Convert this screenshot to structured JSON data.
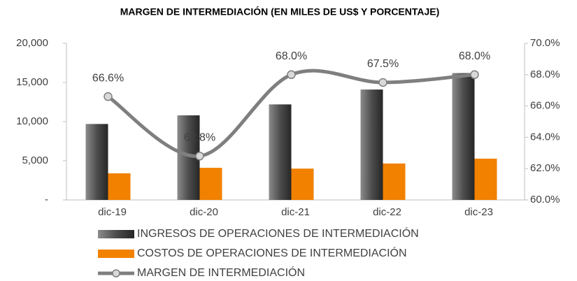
{
  "chart_data": {
    "type": "bar",
    "title": "MARGEN DE INTERMEDIACIÓN (EN MILES DE US$ Y PORCENTAJE)",
    "categories": [
      "dic-19",
      "dic-20",
      "dic-21",
      "dic-22",
      "dic-23"
    ],
    "series": [
      {
        "name": "INGRESOS DE OPERACIONES DE INTERMEDIACIÓN",
        "color": "#595959",
        "values": [
          9700,
          10800,
          12200,
          14100,
          16200
        ]
      },
      {
        "name": "COSTOS DE OPERACIONES DE INTERMEDIACIÓN",
        "color": "#f28100",
        "values": [
          3400,
          4100,
          4000,
          4650,
          5270
        ]
      },
      {
        "name": "MARGEN DE INTERMEDIACIÓN",
        "color": "#7f7f7f",
        "axis": "y2",
        "type": "line",
        "values": [
          66.6,
          62.8,
          68.0,
          67.5,
          68.0
        ],
        "value_labels": [
          "66.6%",
          "62.8%",
          "68.0%",
          "67.5%",
          "68.0%"
        ]
      }
    ],
    "ylim": [
      0,
      20000
    ],
    "yticks": [
      {
        "value": 0,
        "label": "-"
      },
      {
        "value": 5000,
        "label": "5,000"
      },
      {
        "value": 10000,
        "label": "10,000"
      },
      {
        "value": 15000,
        "label": "15,000"
      },
      {
        "value": 20000,
        "label": "20,000"
      }
    ],
    "y2lim": [
      60,
      70
    ],
    "y2ticks": [
      {
        "value": 60,
        "label": "60.0%"
      },
      {
        "value": 62,
        "label": "62.0%"
      },
      {
        "value": 64,
        "label": "64.0%"
      },
      {
        "value": 66,
        "label": "66.0%"
      },
      {
        "value": 68,
        "label": "68.0%"
      },
      {
        "value": 70,
        "label": "70.0%"
      }
    ]
  }
}
